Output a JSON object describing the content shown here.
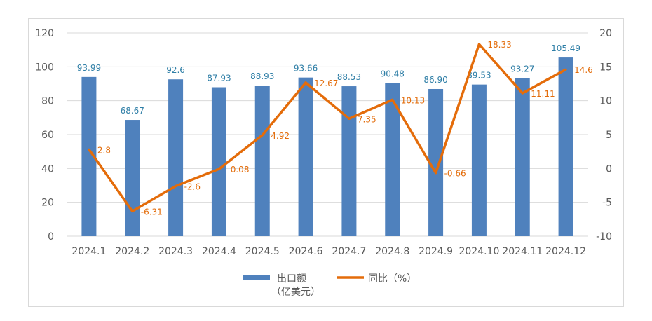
{
  "chart_data": {
    "type": "bar+line",
    "categories": [
      "2024.1",
      "2024.2",
      "2024.3",
      "2024.4",
      "2024.5",
      "2024.6",
      "2024.7",
      "2024.8",
      "2024.9",
      "2024.10",
      "2024.11",
      "2024.12"
    ],
    "series": [
      {
        "name": "出口额",
        "name_line2": "（亿美元）",
        "type": "bar",
        "axis": "left",
        "color": "#4f81bd",
        "values": [
          93.99,
          68.67,
          92.6,
          87.93,
          88.93,
          93.66,
          88.53,
          90.48,
          86.9,
          89.53,
          93.27,
          105.49
        ],
        "labels": [
          "93.99",
          "68.67",
          "92.6",
          "87.93",
          "88.93",
          "93.66",
          "88.53",
          "90.48",
          "86.90",
          "89.53",
          "93.27",
          "105.49"
        ]
      },
      {
        "name": "同比（%）",
        "type": "line",
        "axis": "right",
        "color": "#e46c0a",
        "values": [
          2.8,
          -6.31,
          -2.6,
          -0.08,
          4.92,
          12.67,
          7.35,
          10.13,
          -0.66,
          18.33,
          11.11,
          14.6
        ],
        "labels": [
          "2.8",
          "-6.31",
          "-2.6",
          "-0.08",
          "4.92",
          "12.67",
          "7.35",
          "10.13",
          "-0.66",
          "18.33",
          "11.11",
          "14.6"
        ]
      }
    ],
    "y_left": {
      "range": [
        0,
        120
      ],
      "ticks": [
        "0",
        "20",
        "40",
        "60",
        "80",
        "100",
        "120"
      ]
    },
    "y_right": {
      "range": [
        -10,
        20
      ],
      "ticks": [
        "-10",
        "-5",
        "0",
        "5",
        "10",
        "15",
        "20"
      ]
    },
    "legend": "bottom",
    "grid": true
  }
}
